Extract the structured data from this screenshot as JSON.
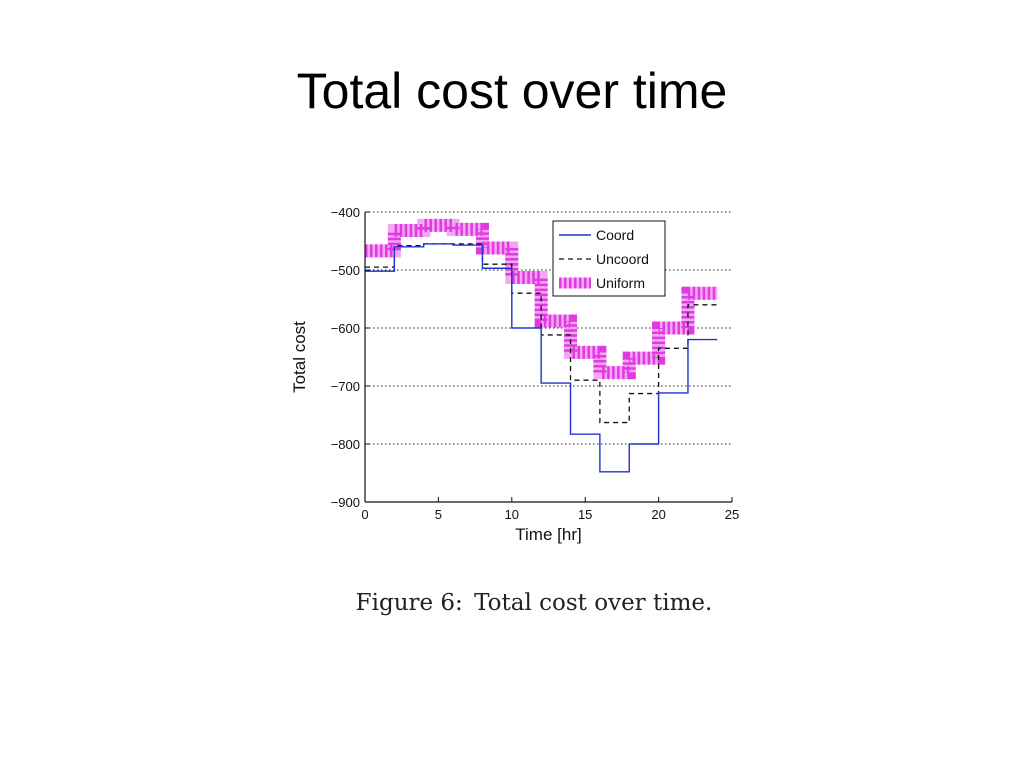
{
  "slide": {
    "title": "Total cost over time"
  },
  "figure": {
    "caption_label": "Figure 6:",
    "caption_text": "Total cost over time."
  },
  "chart_data": {
    "type": "line",
    "step": true,
    "title": "",
    "xlabel": "Time [hr]",
    "ylabel": "Total cost",
    "xlim": [
      0,
      25
    ],
    "ylim": [
      -900,
      -400
    ],
    "xticks": [
      0,
      5,
      10,
      15,
      20,
      25
    ],
    "xtick_labels": [
      "0",
      "5",
      "10",
      "15",
      "20",
      "25"
    ],
    "yticks": [
      -400,
      -500,
      -600,
      -700,
      -800,
      -900
    ],
    "ytick_labels": [
      "−400",
      "−500",
      "−600",
      "−700",
      "−800",
      "−900"
    ],
    "grid": "horizontal dotted",
    "legend_position": "top-right",
    "x": [
      0,
      2,
      4,
      6,
      8,
      10,
      12,
      14,
      16,
      18,
      20,
      22,
      24
    ],
    "series": [
      {
        "name": "Coord",
        "style": "solid",
        "color": "#2233cc",
        "values": [
          -502,
          -460,
          -455,
          -457,
          -497,
          -600,
          -695,
          -783,
          -848,
          -800,
          -712,
          -620,
          -620
        ]
      },
      {
        "name": "Uncoord",
        "style": "dashed",
        "color": "#111111",
        "values": [
          -495,
          -458,
          -455,
          -455,
          -490,
          -540,
          -612,
          -690,
          -763,
          -713,
          -635,
          -560,
          -560
        ]
      },
      {
        "name": "Uniform",
        "style": "thick-hatched",
        "color": "#e23ae2",
        "values": [
          -467,
          -432,
          -423,
          -430,
          -462,
          -513,
          -588,
          -642,
          -677,
          -652,
          -600,
          -540,
          -540
        ]
      }
    ]
  }
}
